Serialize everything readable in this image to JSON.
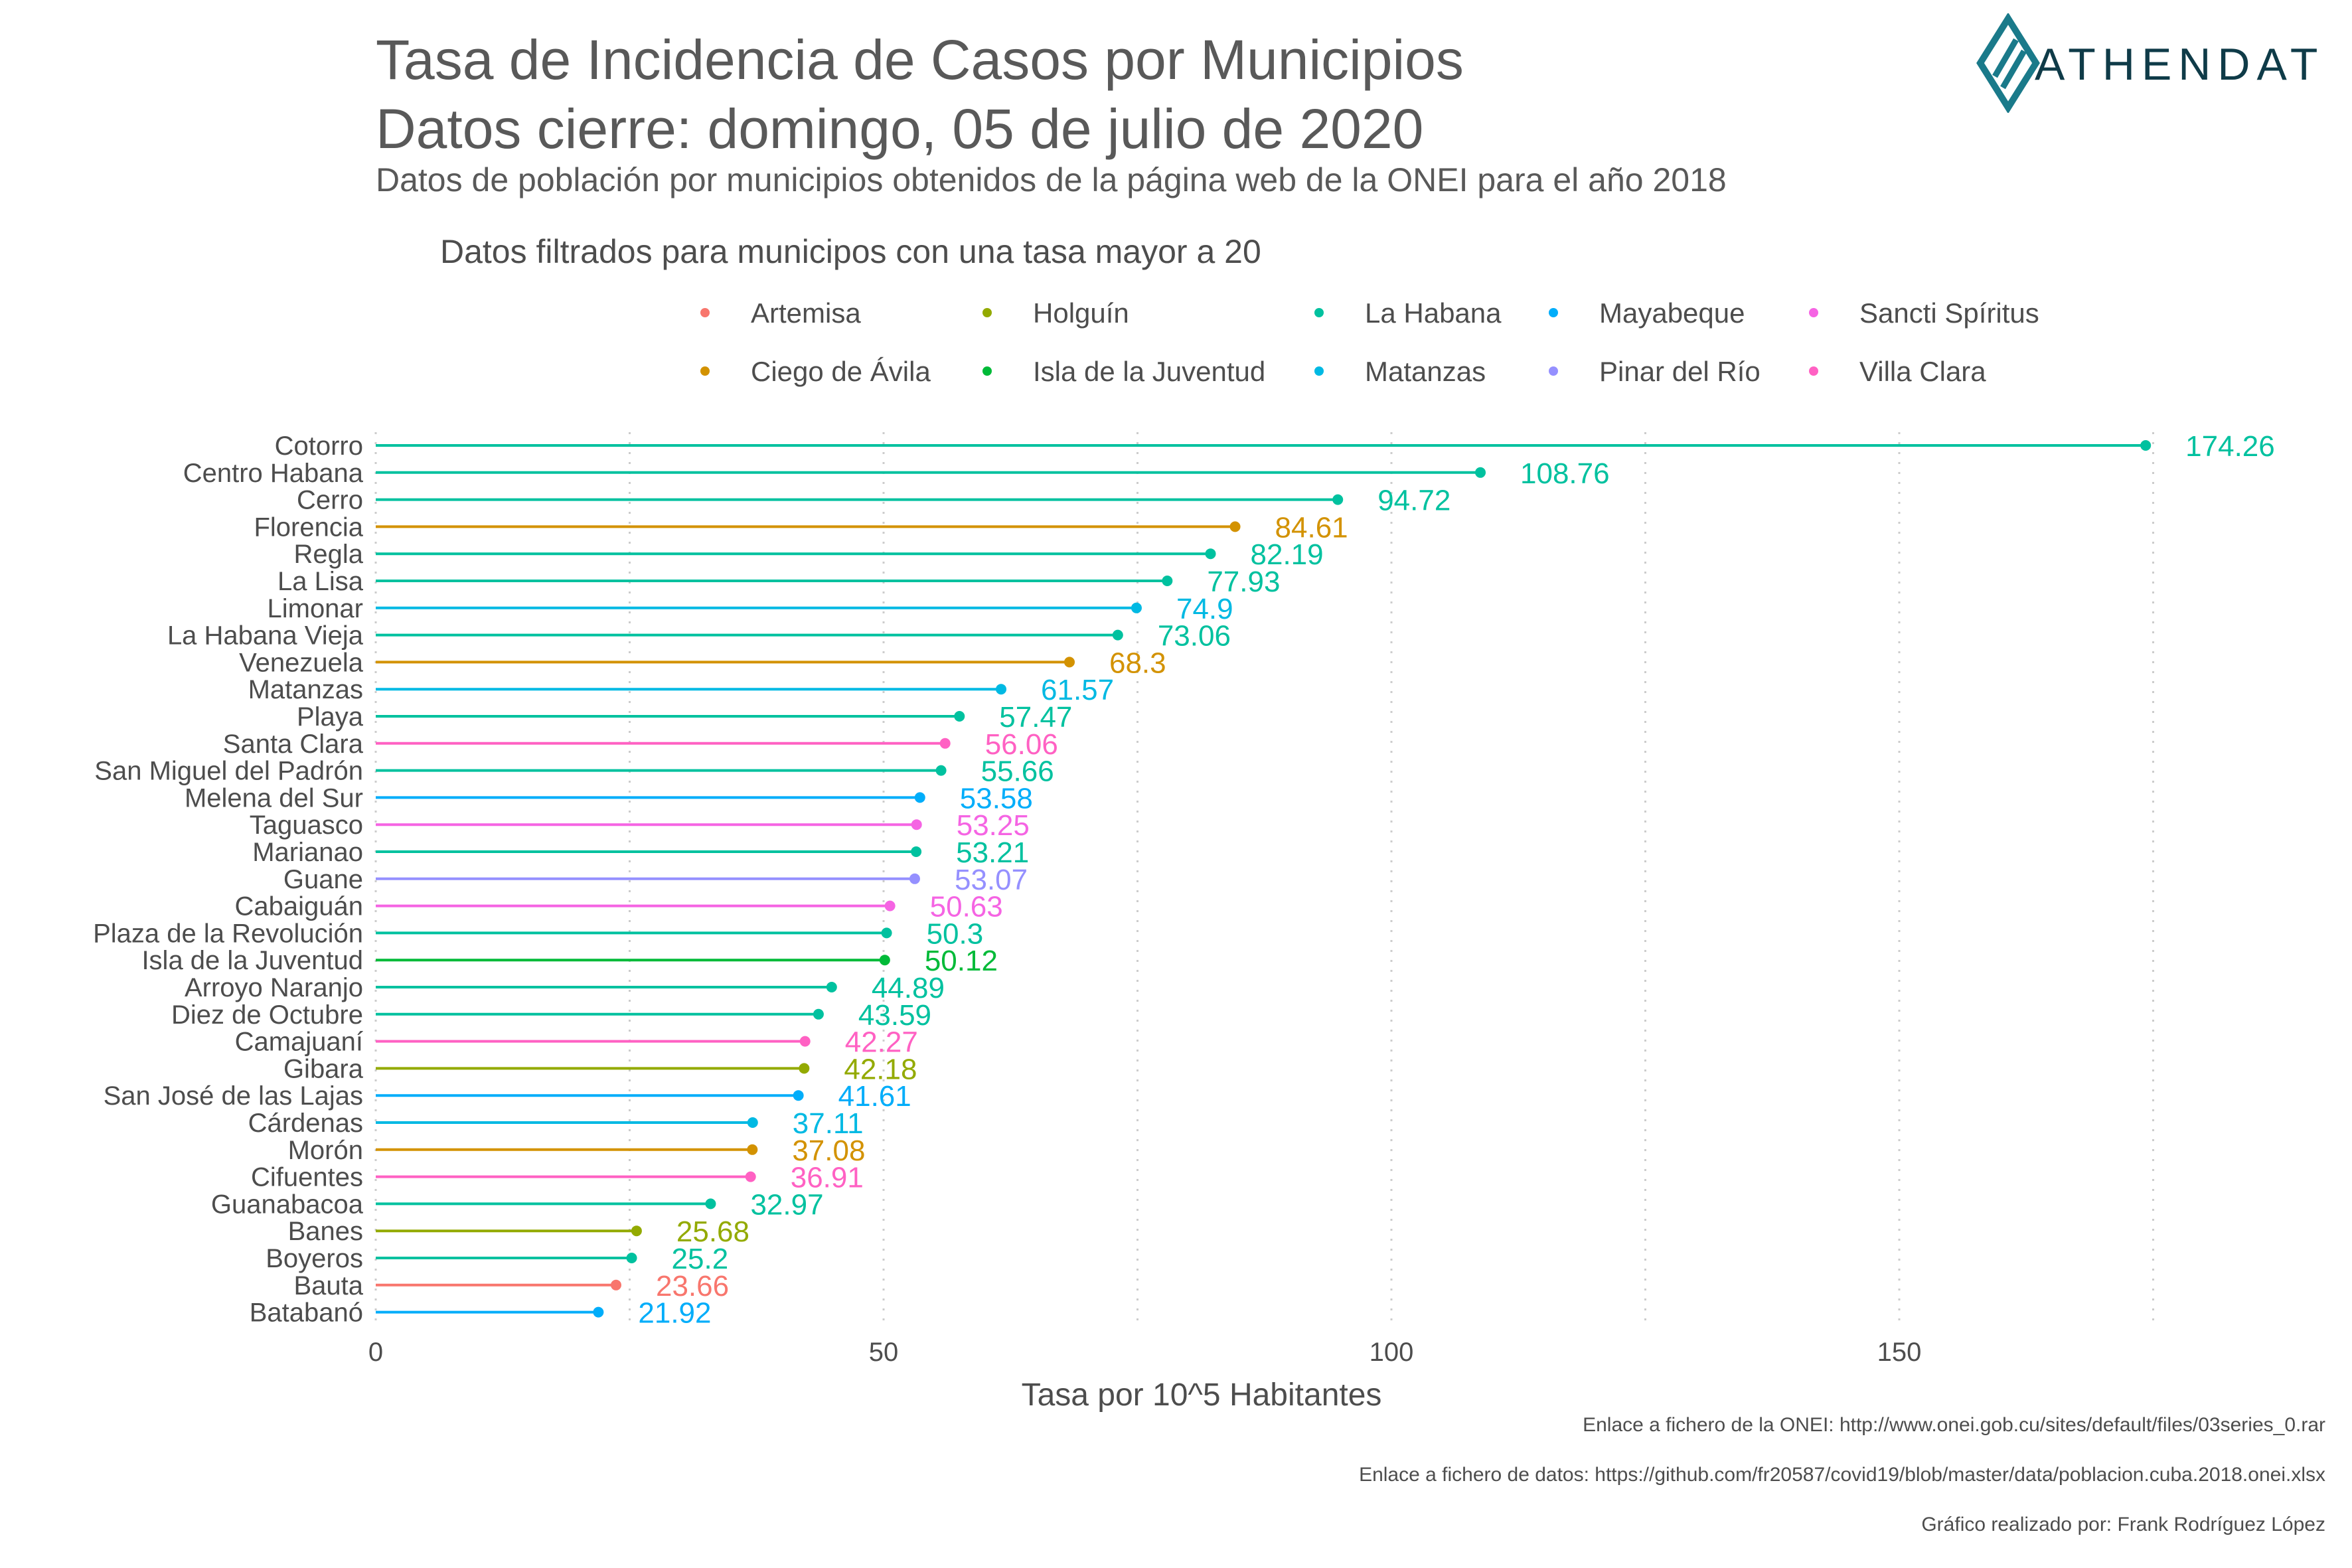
{
  "header": {
    "title_line1": "Tasa de Incidencia de Casos por Municipios",
    "title_line2": "Datos cierre: domingo, 05 de julio de 2020",
    "subtitle": "Datos de población por municipios obtenidos de la página web de la ONEI para el año 2018"
  },
  "logo": {
    "name": "ATHENDAT",
    "icon": "athendat-diamond-icon",
    "color": "#1a7a8a"
  },
  "legend": {
    "title": "Datos filtrados para municipos con una tasa mayor a 20",
    "items": [
      {
        "label": "Artemisa",
        "color": "#F8766D"
      },
      {
        "label": "Ciego de Ávila",
        "color": "#D39200"
      },
      {
        "label": "Holguín",
        "color": "#93AA00"
      },
      {
        "label": "Isla de la Juventud",
        "color": "#00BA38"
      },
      {
        "label": "La Habana",
        "color": "#00C19F"
      },
      {
        "label": "Matanzas",
        "color": "#00B9E3"
      },
      {
        "label": "Mayabeque",
        "color": "#00ADFA"
      },
      {
        "label": "Pinar del Río",
        "color": "#9590FF"
      },
      {
        "label": "Sancti Spíritus",
        "color": "#F564E3"
      },
      {
        "label": "Villa Clara",
        "color": "#FF61C3"
      }
    ]
  },
  "chart_data": {
    "type": "lollipop",
    "xlabel": "Tasa por 10^5 Habitantes",
    "xlim": [
      0,
      180
    ],
    "xticks": [
      0,
      50,
      100,
      150
    ],
    "grid": "vertical dotted",
    "points": [
      {
        "label": "Cotorro",
        "value": 174.26,
        "province": "La Habana"
      },
      {
        "label": "Centro Habana",
        "value": 108.76,
        "province": "La Habana"
      },
      {
        "label": "Cerro",
        "value": 94.72,
        "province": "La Habana"
      },
      {
        "label": "Florencia",
        "value": 84.61,
        "province": "Ciego de Ávila"
      },
      {
        "label": "Regla",
        "value": 82.19,
        "province": "La Habana"
      },
      {
        "label": "La Lisa",
        "value": 77.93,
        "province": "La Habana"
      },
      {
        "label": "Limonar",
        "value": 74.9,
        "province": "Matanzas"
      },
      {
        "label": "La Habana Vieja",
        "value": 73.06,
        "province": "La Habana"
      },
      {
        "label": "Venezuela",
        "value": 68.3,
        "province": "Ciego de Ávila"
      },
      {
        "label": "Matanzas",
        "value": 61.57,
        "province": "Matanzas"
      },
      {
        "label": "Playa",
        "value": 57.47,
        "province": "La Habana"
      },
      {
        "label": "Santa Clara",
        "value": 56.06,
        "province": "Villa Clara"
      },
      {
        "label": "San Miguel del Padrón",
        "value": 55.66,
        "province": "La Habana"
      },
      {
        "label": "Melena del Sur",
        "value": 53.58,
        "province": "Mayabeque"
      },
      {
        "label": "Taguasco",
        "value": 53.25,
        "province": "Sancti Spíritus"
      },
      {
        "label": "Marianao",
        "value": 53.21,
        "province": "La Habana"
      },
      {
        "label": "Guane",
        "value": 53.07,
        "province": "Pinar del Río"
      },
      {
        "label": "Cabaiguán",
        "value": 50.63,
        "province": "Sancti Spíritus"
      },
      {
        "label": "Plaza de la Revolución",
        "value": 50.3,
        "province": "La Habana"
      },
      {
        "label": "Isla de la Juventud",
        "value": 50.12,
        "province": "Isla de la Juventud"
      },
      {
        "label": "Arroyo Naranjo",
        "value": 44.89,
        "province": "La Habana"
      },
      {
        "label": "Diez de Octubre",
        "value": 43.59,
        "province": "La Habana"
      },
      {
        "label": "Camajuaní",
        "value": 42.27,
        "province": "Villa Clara"
      },
      {
        "label": "Gibara",
        "value": 42.18,
        "province": "Holguín"
      },
      {
        "label": "San José de las Lajas",
        "value": 41.61,
        "province": "Mayabeque"
      },
      {
        "label": "Cárdenas",
        "value": 37.11,
        "province": "Matanzas"
      },
      {
        "label": "Morón",
        "value": 37.08,
        "province": "Ciego de Ávila"
      },
      {
        "label": "Cifuentes",
        "value": 36.91,
        "province": "Villa Clara"
      },
      {
        "label": "Guanabacoa",
        "value": 32.97,
        "province": "La Habana"
      },
      {
        "label": "Banes",
        "value": 25.68,
        "province": "Holguín"
      },
      {
        "label": "Boyeros",
        "value": 25.2,
        "province": "La Habana"
      },
      {
        "label": "Bauta",
        "value": 23.66,
        "province": "Artemisa"
      },
      {
        "label": "Batabanó",
        "value": 21.92,
        "province": "Mayabeque"
      }
    ]
  },
  "captions": {
    "onei_link": "Enlace a fichero de la ONEI: http://www.onei.gob.cu/sites/default/files/03series_0.rar",
    "data_link": "Enlace a fichero de datos: https://github.com/fr20587/covid19/blob/master/data/poblacion.cuba.2018.onei.xlsx",
    "author": "Gráfico realizado por: Frank Rodríguez López"
  }
}
